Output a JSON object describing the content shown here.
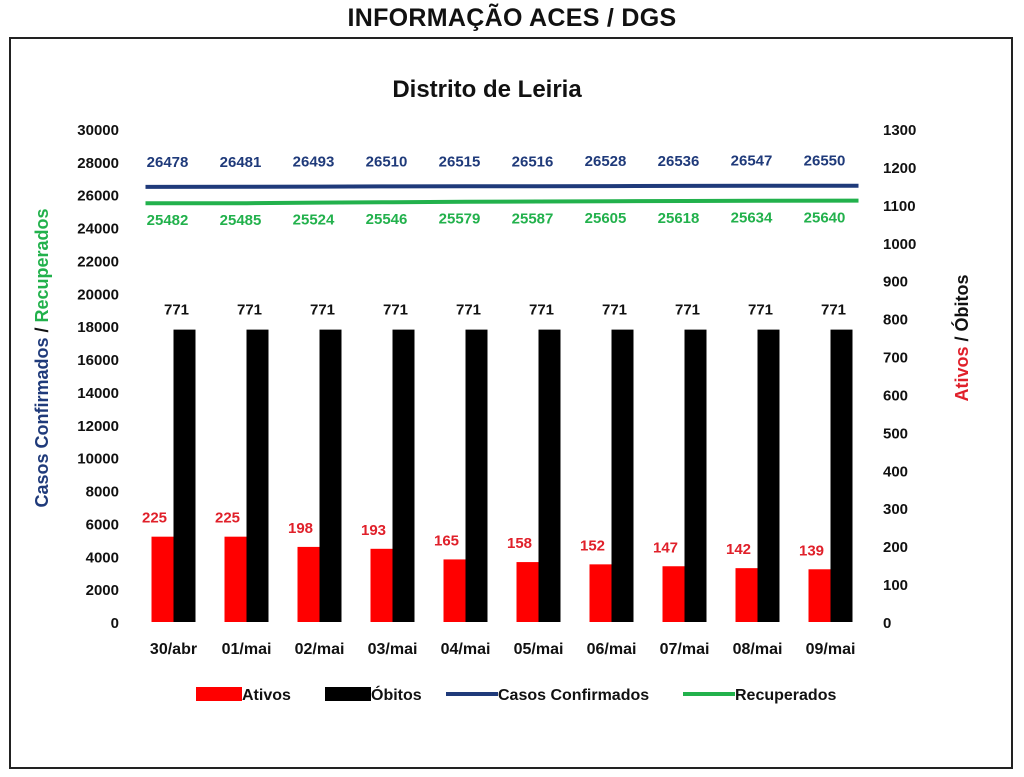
{
  "page": {
    "title": "INFORMAÇÃO ACES / DGS"
  },
  "chart_data": {
    "type": "bar",
    "title": "Distrito de Leiria",
    "categories": [
      "30/abr",
      "01/mai",
      "02/mai",
      "03/mai",
      "04/mai",
      "05/mai",
      "06/mai",
      "07/mai",
      "08/mai",
      "09/mai"
    ],
    "series": [
      {
        "name": "Ativos",
        "type": "bar",
        "axis": "right",
        "color": "#ff0000",
        "label_color": "#e0202a",
        "values": [
          225,
          225,
          198,
          193,
          165,
          158,
          152,
          147,
          142,
          139
        ]
      },
      {
        "name": "Óbitos",
        "type": "bar",
        "axis": "right",
        "color": "#000000",
        "label_color": "#111111",
        "values": [
          771,
          771,
          771,
          771,
          771,
          771,
          771,
          771,
          771,
          771
        ]
      },
      {
        "name": "Casos Confirmados",
        "type": "line",
        "axis": "left",
        "color": "#1f3a7a",
        "label_color": "#1f3a7a",
        "values": [
          26478,
          26481,
          26493,
          26510,
          26515,
          26516,
          26528,
          26536,
          26547,
          26550
        ]
      },
      {
        "name": "Recuperados",
        "type": "line",
        "axis": "left",
        "color": "#22b14c",
        "label_color": "#22b14c",
        "values": [
          25482,
          25485,
          25524,
          25546,
          25579,
          25587,
          25605,
          25618,
          25634,
          25640
        ]
      }
    ],
    "y_left": {
      "range": [
        0,
        30000
      ],
      "step": 2000,
      "label_part1": "Casos Confirmados",
      "label_sep": " / ",
      "label_part2": "Recuperados",
      "label_part1_color": "#1f3a7a",
      "label_part2_color": "#22b14c"
    },
    "y_right": {
      "range": [
        0,
        1300
      ],
      "step": 100,
      "label_part1": "Ativos",
      "label_sep": " / ",
      "label_part2": "Óbitos",
      "label_part1_color": "#e0202a",
      "label_part2_color": "#111111"
    },
    "grid": false,
    "legend_position": "bottom"
  }
}
